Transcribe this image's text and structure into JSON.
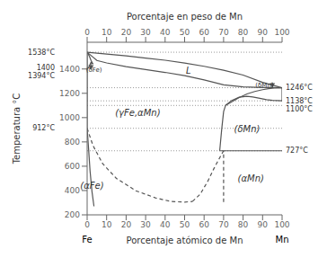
{
  "chart_data": {
    "type": "line",
    "x_label": "Porcentaje atómico de Mn",
    "x2_label": "Porcentaje en peso de Mn",
    "y_label": "Temperatura °C",
    "color": "#555555",
    "xlim": [
      0,
      100
    ],
    "xticks": [
      0,
      10,
      20,
      30,
      40,
      50,
      60,
      70,
      80,
      90,
      100
    ],
    "x2lim": [
      0,
      100
    ],
    "x2ticks": [
      0,
      10,
      20,
      30,
      40,
      50,
      60,
      70,
      80,
      90,
      100
    ],
    "ylim": [
      200,
      1620
    ],
    "yticks": [
      200,
      400,
      600,
      800,
      1000,
      1200,
      1400
    ],
    "series": [
      {
        "x": [
          0,
          10,
          20,
          30,
          40,
          50,
          60,
          70,
          80,
          90,
          100
        ],
        "values": [
          1538,
          1523,
          1508,
          1490,
          1472,
          1449,
          1422,
          1390,
          1350,
          1290,
          1246
        ],
        "line_style": "solid"
      },
      {
        "x": [
          0,
          5,
          10,
          20,
          30,
          40,
          50,
          60,
          70,
          80,
          90,
          95,
          100
        ],
        "values": [
          1538,
          1470,
          1450,
          1420,
          1395,
          1372,
          1345,
          1310,
          1270,
          1253,
          1248,
          1247,
          1246
        ],
        "line_style": "solid"
      },
      {
        "x": [
          0,
          0
        ],
        "values": [
          1394,
          1538
        ],
        "line_style": "solid"
      },
      {
        "x": [
          0,
          1,
          2,
          3
        ],
        "values": [
          1538,
          1510,
          1470,
          1440
        ],
        "line_style": "solid"
      },
      {
        "x": [
          0,
          1,
          2,
          3
        ],
        "values": [
          1394,
          1420,
          1455,
          1440
        ],
        "line_style": "solid"
      },
      {
        "x": [
          0,
          0
        ],
        "values": [
          912,
          1394
        ],
        "line_style": "solid"
      },
      {
        "x": [
          0,
          3,
          8,
          15,
          25,
          35,
          43,
          50,
          54
        ],
        "values": [
          912,
          770,
          620,
          500,
          398,
          340,
          310,
          305,
          310
        ],
        "line_style": "dashed"
      },
      {
        "x": [
          54,
          58,
          62,
          65,
          68,
          70
        ],
        "values": [
          310,
          370,
          480,
          580,
          670,
          727
        ],
        "line_style": "dashed"
      },
      {
        "x": [
          0,
          0.8,
          1.5,
          2.5,
          3.5
        ],
        "values": [
          912,
          730,
          560,
          390,
          270
        ],
        "line_style": "solid"
      },
      {
        "x": [
          68,
          69,
          70,
          71
        ],
        "values": [
          727,
          900,
          1050,
          1100
        ],
        "line_style": "solid"
      },
      {
        "x": [
          71,
          74,
          78,
          82,
          85,
          88,
          92,
          95,
          100
        ],
        "values": [
          1100,
          1140,
          1168,
          1175,
          1170,
          1160,
          1148,
          1142,
          1138
        ],
        "line_style": "solid"
      },
      {
        "x": [
          71,
          74,
          78,
          82,
          86,
          90,
          93,
          96,
          100
        ],
        "values": [
          1100,
          1128,
          1165,
          1195,
          1215,
          1230,
          1238,
          1243,
          1246
        ],
        "line_style": "solid"
      },
      {
        "x": [
          68,
          72,
          78,
          85,
          92,
          100
        ],
        "values": [
          727,
          727,
          727,
          727,
          727,
          727
        ],
        "line_style": "solid"
      },
      {
        "x": [
          70,
          70
        ],
        "values": [
          305,
          727
        ],
        "line_style": "dashed"
      },
      {
        "x": [
          100,
          100
        ],
        "values": [
          1138,
          1246
        ],
        "line_style": "solid"
      }
    ],
    "reference_lines": {
      "values": [
        1538,
        1246,
        1138,
        1100,
        912,
        727
      ],
      "line_style": "dotted"
    },
    "arrows": [
      {
        "x": [
          2,
          2
        ],
        "values": [
          1450,
          1394
        ]
      },
      {
        "x": [
          95,
          95
        ],
        "values": [
          1290,
          1246
        ]
      }
    ],
    "annotations_left": [
      {
        "text": "1538°C",
        "y": 1538
      },
      {
        "text": "1400",
        "y": 1407
      },
      {
        "text": "1394°C",
        "y": 1394
      },
      {
        "text": "912°C",
        "y": 912
      }
    ],
    "annotations_right": [
      {
        "text": "1246°C",
        "y": 1246
      },
      {
        "text": "1138°C",
        "y": 1138
      },
      {
        "text": "1100°C",
        "y": 1100
      },
      {
        "text": "727°C",
        "y": 727
      }
    ],
    "regions": [
      {
        "text": "L",
        "x": 52,
        "y": 1390
      },
      {
        "text": "(γFe,αMn)",
        "x": 26,
        "y": 1040
      },
      {
        "text": "(αFe)",
        "x": 2.5,
        "y": 440
      },
      {
        "text": "(δMn)",
        "x": 82,
        "y": 910
      },
      {
        "text": "(αMn)",
        "x": 84,
        "y": 500
      }
    ],
    "boundary_labels": [
      {
        "text": "(δFe)",
        "x": 3.5,
        "y": 1394
      },
      {
        "text": "(δMn)",
        "x": 91,
        "y": 1268
      }
    ],
    "end_labels": [
      {
        "text": "Fe",
        "x": 0
      },
      {
        "text": "Mn",
        "x": 100
      }
    ]
  }
}
